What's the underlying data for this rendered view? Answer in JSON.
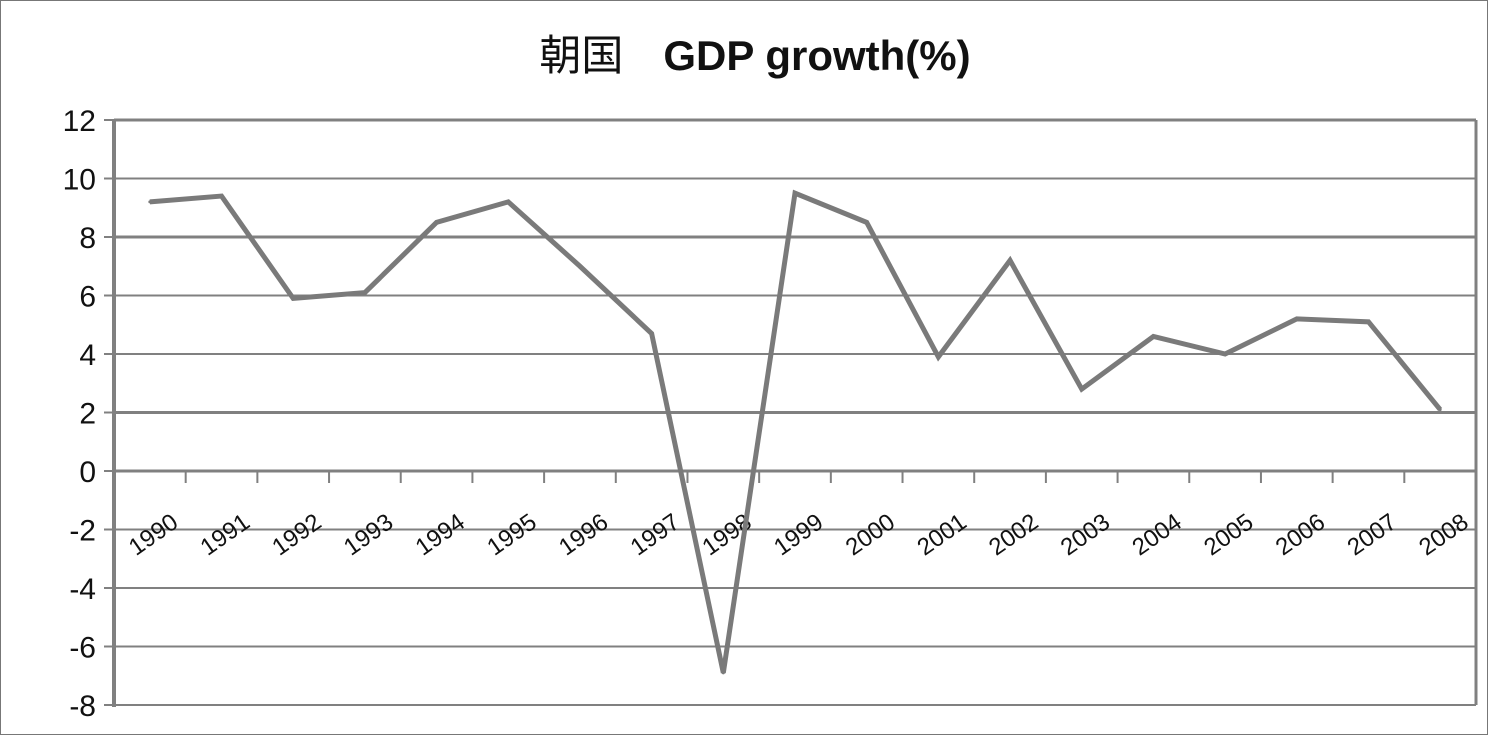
{
  "chart_data": {
    "type": "line",
    "title_cn": "朝国",
    "title": "GDP growth(%)",
    "xlabel": "",
    "ylabel": "",
    "categories": [
      "1990",
      "1991",
      "1992",
      "1993",
      "1994",
      "1995",
      "1996",
      "1997",
      "1998",
      "1999",
      "2000",
      "2001",
      "2002",
      "2003",
      "2004",
      "2005",
      "2006",
      "2007",
      "2008"
    ],
    "series": [
      {
        "values": [
          9.2,
          9.4,
          5.9,
          6.1,
          8.5,
          9.2,
          7.0,
          4.7,
          -6.9,
          9.5,
          8.5,
          3.9,
          7.2,
          2.8,
          4.6,
          4.0,
          5.2,
          5.1,
          2.1
        ]
      }
    ],
    "ylim": [
      -8,
      12
    ],
    "yticks": [
      "12",
      "10",
      "8",
      "6",
      "4",
      "2",
      "0",
      "-2",
      "-4",
      "-6",
      "-8"
    ],
    "grid": true,
    "legend": "none",
    "line_color": "#7a7a7a",
    "grid_color": "#808080"
  }
}
